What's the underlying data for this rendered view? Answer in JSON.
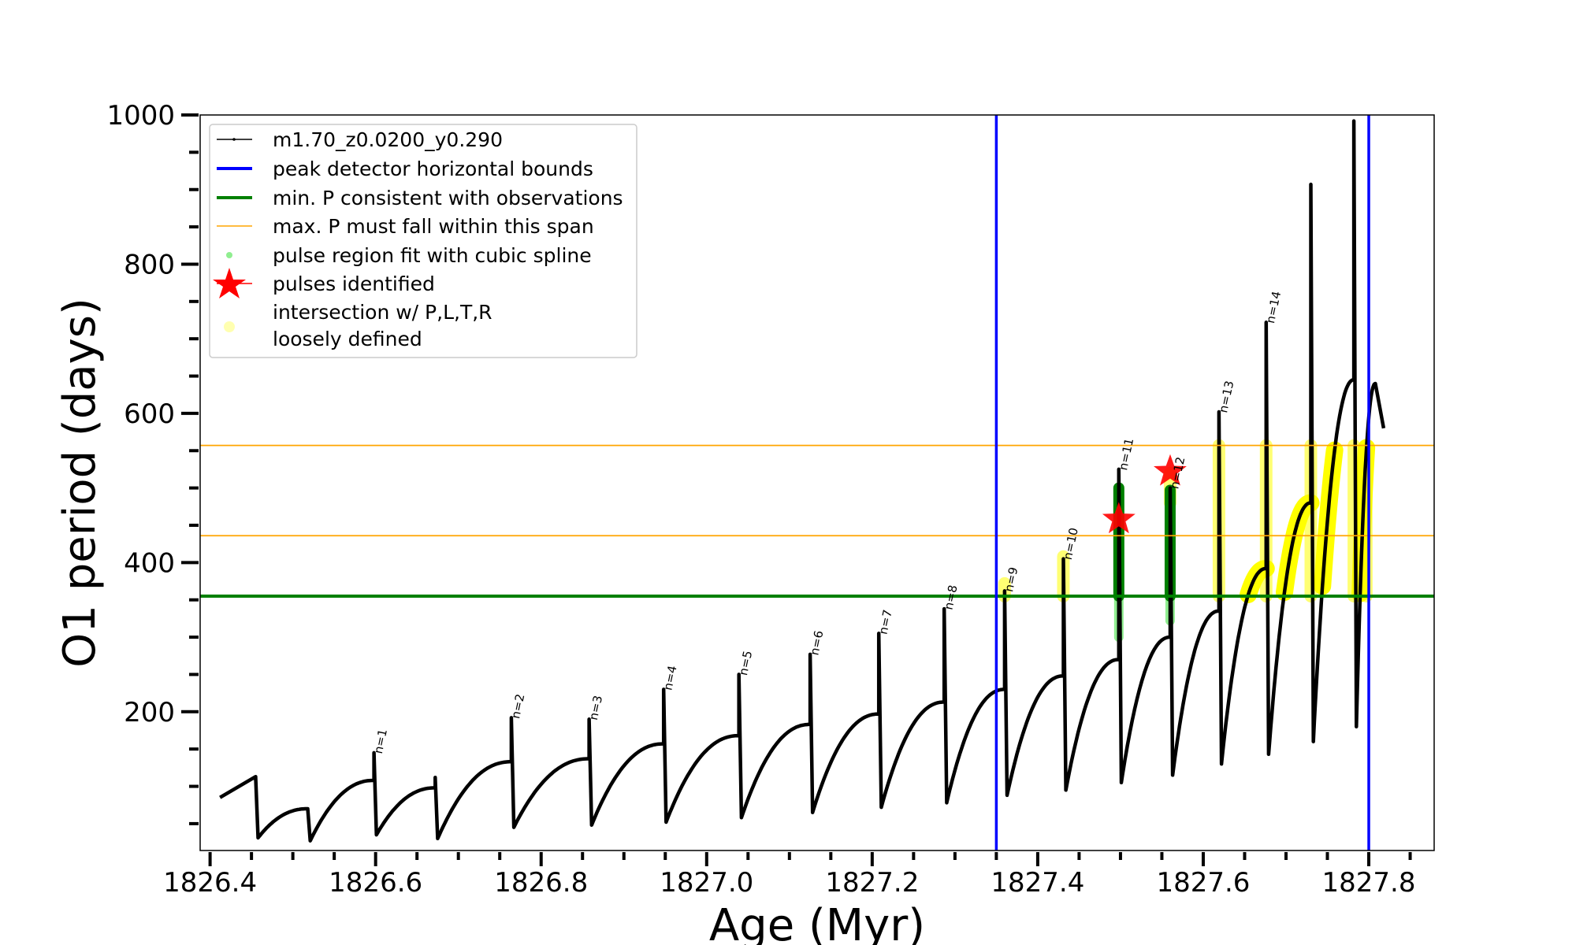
{
  "chart_data": {
    "type": "line",
    "xlabel": "Age (Myr)",
    "ylabel": "O1 period (days)",
    "xlim": [
      1826.388,
      1827.879
    ],
    "ylim": [
      14,
      1000
    ],
    "xticks": [
      1826.4,
      1826.6,
      1826.8,
      1827.0,
      1827.2,
      1827.4,
      1827.6,
      1827.8
    ],
    "xtick_labels": [
      "1826.4",
      "1826.6",
      "1826.8",
      "1827.0",
      "1827.2",
      "1827.4",
      "1827.6",
      "1827.8"
    ],
    "yticks": [
      200,
      400,
      600,
      800,
      1000
    ],
    "ytick_labels": [
      "200",
      "400",
      "600",
      "800",
      "1000"
    ],
    "grid": false,
    "legend_position": "top-left",
    "legend": [
      {
        "label": "m1.70_z0.0200_y0.290",
        "kind": "line-marker",
        "color": "#000000"
      },
      {
        "label": "peak detector horizontal bounds",
        "kind": "line",
        "color": "#0000ff"
      },
      {
        "label": "min. P consistent with observations",
        "kind": "line",
        "color": "#008000"
      },
      {
        "label": "max. P must fall within this span",
        "kind": "thin-line",
        "color": "#ffa500"
      },
      {
        "label": "pulse region fit with cubic spline",
        "kind": "dot",
        "color": "#90ee90"
      },
      {
        "label": "pulses identified",
        "kind": "star",
        "color": "#ff0000"
      },
      {
        "label": "intersection w/ P,L,T,R",
        "label2": "loosely defined",
        "kind": "dot",
        "color": "#ffffb0"
      }
    ],
    "series": {
      "name": "m1.70_z0.0200_y0.290",
      "color": "#000000",
      "start": {
        "age": 1826.412,
        "value": 85
      },
      "pulses": [
        {
          "age": 1826.455,
          "pre": 85,
          "spike": 113,
          "dip": 31,
          "label": null
        },
        {
          "age": 1826.518,
          "pre": 70,
          "spike": 70,
          "dip": 27,
          "label": null
        },
        {
          "age": 1826.598,
          "pre": 108,
          "spike": 145,
          "dip": 35,
          "label": "n=1"
        },
        {
          "age": 1826.672,
          "pre": 98,
          "spike": 112,
          "dip": 30,
          "label": null
        },
        {
          "age": 1826.764,
          "pre": 133,
          "spike": 192,
          "dip": 45,
          "label": "n=2"
        },
        {
          "age": 1826.858,
          "pre": 137,
          "spike": 190,
          "dip": 48,
          "label": "n=3"
        },
        {
          "age": 1826.948,
          "pre": 157,
          "spike": 230,
          "dip": 52,
          "label": "n=4"
        },
        {
          "age": 1827.039,
          "pre": 168,
          "spike": 250,
          "dip": 58,
          "label": "n=5"
        },
        {
          "age": 1827.125,
          "pre": 183,
          "spike": 277,
          "dip": 65,
          "label": "n=6"
        },
        {
          "age": 1827.208,
          "pre": 197,
          "spike": 305,
          "dip": 72,
          "label": "n=7"
        },
        {
          "age": 1827.287,
          "pre": 213,
          "spike": 338,
          "dip": 78,
          "label": "n=8"
        },
        {
          "age": 1827.36,
          "pre": 230,
          "spike": 362,
          "dip": 88,
          "label": "n=9"
        },
        {
          "age": 1827.431,
          "pre": 248,
          "spike": 405,
          "dip": 95,
          "label": "n=10"
        },
        {
          "age": 1827.498,
          "pre": 270,
          "spike": 525,
          "dip": 105,
          "label": "n=11"
        },
        {
          "age": 1827.56,
          "pre": 300,
          "spike": 500,
          "dip": 115,
          "label": "n=12"
        },
        {
          "age": 1827.619,
          "pre": 335,
          "spike": 602,
          "dip": 130,
          "label": "n=13"
        },
        {
          "age": 1827.676,
          "pre": 392,
          "spike": 722,
          "dip": 143,
          "label": "n=14"
        },
        {
          "age": 1827.73,
          "pre": 480,
          "spike": 907,
          "dip": 160,
          "label": null
        },
        {
          "age": 1827.782,
          "pre": 645,
          "spike": 992,
          "dip": 180,
          "label": null
        }
      ],
      "tail": [
        {
          "age": 1827.808,
          "value": 640
        },
        {
          "age": 1827.818,
          "value": 580
        }
      ]
    },
    "vlines": [
      {
        "age": 1827.35,
        "color": "#0000ff",
        "label": "peak detector horizontal bounds"
      },
      {
        "age": 1827.8,
        "color": "#0000ff",
        "label": "peak detector horizontal bounds"
      }
    ],
    "hlines": [
      {
        "value": 355,
        "color": "#008000",
        "label": "min. P consistent with observations"
      },
      {
        "value": 436,
        "color": "#ffa500",
        "label": "max. P must fall within this span"
      },
      {
        "value": 557,
        "color": "#ffa500",
        "label": "max. P must fall within this span"
      }
    ],
    "spline_regions": [
      {
        "age": 1827.498,
        "light": [
          300,
          355
        ],
        "dark": [
          355,
          500
        ],
        "tip": 525
      },
      {
        "age": 1827.56,
        "light": [
          322,
          355
        ],
        "dark": [
          355,
          497
        ],
        "tip": null
      }
    ],
    "pulses_identified": [
      {
        "age": 1827.498,
        "value": 458
      },
      {
        "age": 1827.56,
        "value": 522
      }
    ],
    "intersections_vertical": [
      {
        "age": 1827.36,
        "min": 355,
        "max": 372
      },
      {
        "age": 1827.431,
        "min": 355,
        "max": 408
      },
      {
        "age": 1827.56,
        "min": 480,
        "max": 520
      },
      {
        "age": 1827.619,
        "min": 355,
        "max": 557
      },
      {
        "age": 1827.676,
        "min": 355,
        "max": 557
      },
      {
        "age": 1827.73,
        "min": 355,
        "max": 557
      },
      {
        "age": 1827.782,
        "min": 355,
        "max": 557
      },
      {
        "age": 1827.797,
        "min": 355,
        "max": 557
      }
    ],
    "intersections_curve": {
      "age_min": 1827.64,
      "age_max": 1827.8,
      "min": 355,
      "max": 557
    }
  }
}
